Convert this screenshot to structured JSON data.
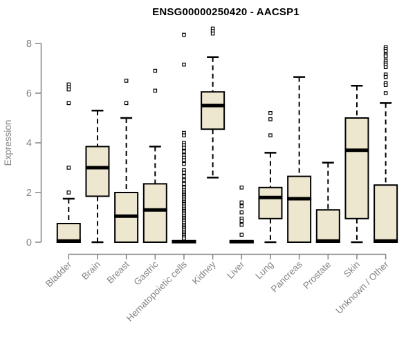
{
  "chart_data": {
    "type": "boxplot",
    "title": "ENSG00000250420 - AACSP1",
    "ylabel": "Expression",
    "xlabel": "",
    "ylim": [
      0,
      8
    ],
    "yticks": [
      0,
      2,
      4,
      6,
      8
    ],
    "grid": false,
    "legend": null,
    "colors": {
      "box_fill": "#EDE7CF",
      "box_stroke": "#000000",
      "median": "#000000",
      "outlier_stroke": "#000000",
      "axis": "#848484",
      "title": "#000000",
      "background": "#ffffff"
    },
    "categories": [
      "Bladder",
      "Brain",
      "Breast",
      "Gastric",
      "Hematopoietic cells",
      "Kidney",
      "Liver",
      "Lung",
      "Pancreas",
      "Prostate",
      "Skin",
      "Unknown / Other"
    ],
    "boxes": [
      {
        "q1": 0,
        "median": 0.05,
        "q3": 0.75,
        "whisker_low": null,
        "whisker_high": 1.75,
        "outliers": [
          6.35,
          6.25,
          6.15,
          5.6,
          3.0,
          2.0
        ]
      },
      {
        "q1": 1.85,
        "median": 3.0,
        "q3": 3.85,
        "whisker_low": 0,
        "whisker_high": 5.3,
        "outliers": []
      },
      {
        "q1": 0,
        "median": 1.05,
        "q3": 2.0,
        "whisker_low": null,
        "whisker_high": 5.0,
        "outliers": [
          6.5,
          5.6
        ]
      },
      {
        "q1": 0,
        "median": 1.3,
        "q3": 2.35,
        "whisker_low": null,
        "whisker_high": 3.85,
        "outliers": [
          6.9,
          6.1
        ]
      },
      {
        "q1": 0,
        "median": 0.02,
        "q3": 0.04,
        "whisker_low": null,
        "whisker_high": null,
        "outliers": [
          8.35,
          7.15,
          4.4,
          4.3,
          4.0,
          3.9,
          3.8,
          3.65,
          3.5,
          3.4,
          3.3,
          3.15,
          2.9,
          2.8,
          2.65,
          2.5,
          2.35,
          2.2,
          2.1,
          2.03,
          1.96,
          1.89,
          1.82,
          1.75,
          1.68,
          1.61,
          1.54,
          1.47,
          1.4,
          1.33,
          1.26,
          1.19,
          1.12,
          1.05,
          0.98,
          0.91,
          0.84,
          0.77,
          0.7,
          0.63,
          0.56,
          0.49,
          0.42,
          0.35,
          0.28,
          0.21,
          0.15
        ]
      },
      {
        "q1": 4.55,
        "median": 5.5,
        "q3": 6.05,
        "whisker_low": 2.6,
        "whisker_high": 7.45,
        "outliers": [
          8.6,
          8.5,
          8.4
        ]
      },
      {
        "q1": 0,
        "median": 0.02,
        "q3": 0.04,
        "whisker_low": null,
        "whisker_high": null,
        "outliers": [
          2.2,
          1.6,
          1.45,
          1.2,
          0.95,
          0.85,
          0.7,
          0.3
        ]
      },
      {
        "q1": 0.95,
        "median": 1.8,
        "q3": 2.2,
        "whisker_low": 0,
        "whisker_high": 3.6,
        "outliers": [
          5.2,
          4.95,
          4.3
        ]
      },
      {
        "q1": 0,
        "median": 1.75,
        "q3": 2.65,
        "whisker_low": null,
        "whisker_high": 6.65,
        "outliers": []
      },
      {
        "q1": 0,
        "median": 0.05,
        "q3": 1.3,
        "whisker_low": null,
        "whisker_high": 3.2,
        "outliers": []
      },
      {
        "q1": 0.95,
        "median": 3.7,
        "q3": 5.0,
        "whisker_low": 0,
        "whisker_high": 6.3,
        "outliers": []
      },
      {
        "q1": 0,
        "median": 0.05,
        "q3": 2.3,
        "whisker_low": null,
        "whisker_high": 5.6,
        "outliers": [
          7.85,
          7.78,
          7.7,
          7.55,
          7.48,
          7.3,
          7.22,
          7.15,
          7.05,
          6.75,
          6.65,
          6.4,
          6.33,
          6.0
        ]
      }
    ]
  }
}
